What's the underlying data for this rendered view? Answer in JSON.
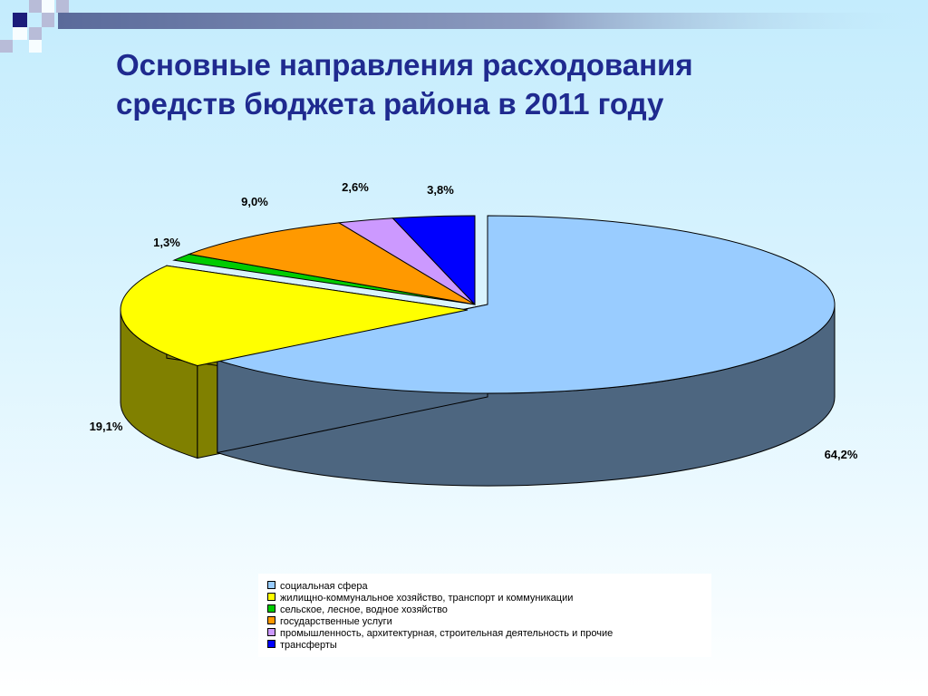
{
  "slide": {
    "title_lines": [
      "Основные направления расходования",
      "средств бюджета района в 2011 году"
    ],
    "colors": {
      "title": "#1f2a8f",
      "header_squares": "#1c1c7a",
      "header_band": "#5a6a9a"
    }
  },
  "chart_data": {
    "type": "pie",
    "title": "",
    "legend_position": "bottom",
    "slices": [
      {
        "name": "социальная сфера",
        "value": 64.2,
        "label": "64,2%",
        "color": "#99ccff",
        "side": "#4d6680"
      },
      {
        "name": "жилищно-коммунальное хозяйство, транспорт и коммуникации",
        "value": 19.1,
        "label": "19,1%",
        "color": "#ffff00",
        "side": "#808000"
      },
      {
        "name": "сельское, лесное, водное хозяйство",
        "value": 1.3,
        "label": "1,3%",
        "color": "#00cc00",
        "side": "#006600"
      },
      {
        "name": "государственные услуги",
        "value": 9.0,
        "label": "9,0%",
        "color": "#ff9900",
        "side": "#804c00"
      },
      {
        "name": "промышленность, архитектурная, строительная деятельность и прочие",
        "value": 2.6,
        "label": "2,6%",
        "color": "#cc99ff",
        "side": "#664c80"
      },
      {
        "name": "трансферты",
        "value": 3.8,
        "label": "3,8%",
        "color": "#0000ff",
        "side": "#000080"
      }
    ]
  }
}
